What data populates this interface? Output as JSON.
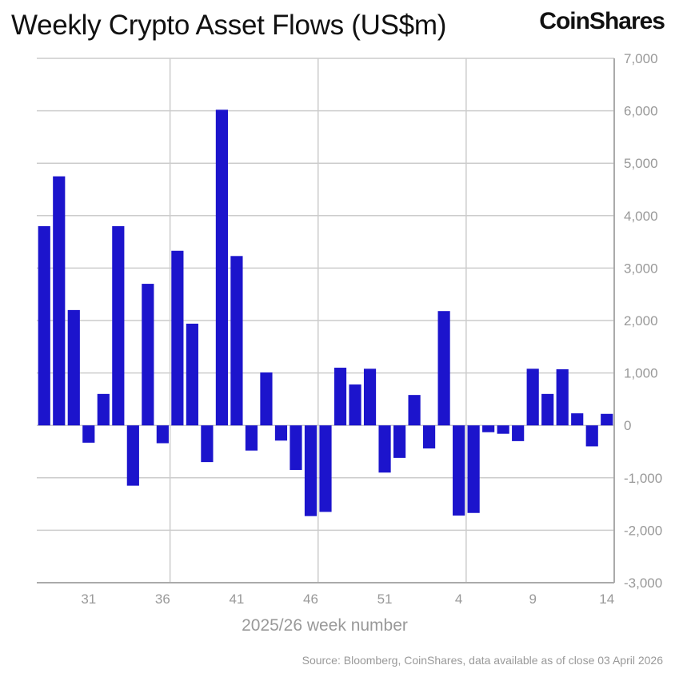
{
  "chart_data": {
    "type": "bar",
    "title": "Weekly Crypto Asset Flows (US$m)",
    "xlabel": "2025/26 week number",
    "ylabel": "",
    "ylim": [
      -3000,
      7000
    ],
    "yticks": [
      "7,000",
      "6,000",
      "5,000",
      "4,000",
      "3,000",
      "2,000",
      "1,000",
      "0",
      "-1,000",
      "-2,000",
      "-3,000"
    ],
    "ytick_values": [
      7000,
      6000,
      5000,
      4000,
      3000,
      2000,
      1000,
      0,
      -1000,
      -2000,
      -3000
    ],
    "y_axis_side": "right",
    "grid": true,
    "bar_color": "#1c14cc",
    "categories": [
      "28",
      "29",
      "30",
      "31",
      "32",
      "33",
      "34",
      "35",
      "36",
      "37",
      "38",
      "39",
      "40",
      "41",
      "42",
      "43",
      "44",
      "45",
      "46",
      "47",
      "48",
      "49",
      "50",
      "51",
      "52",
      "1",
      "2",
      "3",
      "4",
      "5",
      "6",
      "7",
      "8",
      "9",
      "10",
      "11",
      "12",
      "13",
      "14"
    ],
    "xtick_labels": [
      "31",
      "36",
      "41",
      "46",
      "51",
      "4",
      "9",
      "14"
    ],
    "values": [
      3800,
      4750,
      2200,
      -330,
      600,
      3800,
      -1150,
      2700,
      -340,
      3330,
      1940,
      -700,
      6020,
      3230,
      -480,
      1010,
      -290,
      -850,
      -1730,
      -1650,
      1100,
      780,
      1080,
      -900,
      -620,
      580,
      -440,
      2180,
      -1720,
      -1670,
      -130,
      -160,
      -300,
      1080,
      600,
      1070,
      230,
      -400,
      220
    ]
  },
  "brand": "CoinShares",
  "source": "Source: Bloomberg, CoinShares, data available as of close 03 April 2026"
}
